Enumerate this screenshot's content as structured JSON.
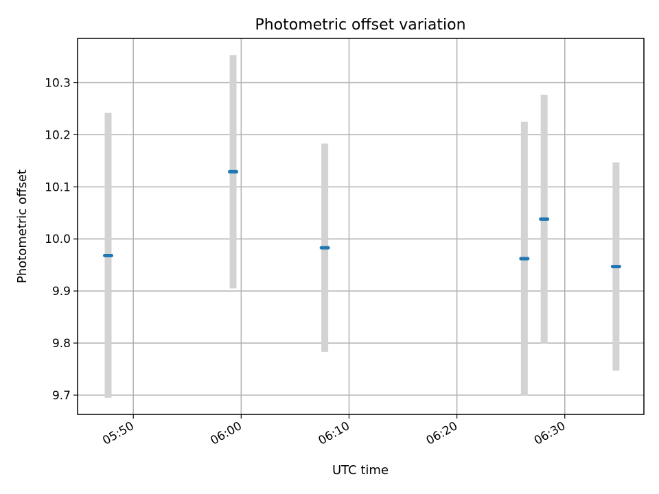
{
  "chart_data": {
    "type": "scatter",
    "title": "Photometric offset variation",
    "xlabel": "UTC time",
    "ylabel": "Photometric offset",
    "x_ticks": [
      "05:50",
      "06:00",
      "06:10",
      "06:20",
      "06:30"
    ],
    "y_ticks": [
      "9.7",
      "9.8",
      "9.9",
      "10.0",
      "10.1",
      "10.2",
      "10.3"
    ],
    "xlim": [
      "05:44:50",
      "06:37:20"
    ],
    "ylim": [
      9.663,
      10.385
    ],
    "grid": true,
    "colors": {
      "points": "#1f77b4",
      "error_bars": "#d3d3d3"
    },
    "series": [
      {
        "points": [
          {
            "x": "05:47:40",
            "y": 9.968,
            "ymin": 9.695,
            "ymax": 10.242
          },
          {
            "x": "05:59:15",
            "y": 10.129,
            "ymin": 9.905,
            "ymax": 10.353
          },
          {
            "x": "06:07:45",
            "y": 9.983,
            "ymin": 9.783,
            "ymax": 10.183
          },
          {
            "x": "06:26:15",
            "y": 9.962,
            "ymin": 9.699,
            "ymax": 10.225
          },
          {
            "x": "06:28:05",
            "y": 10.038,
            "ymin": 9.799,
            "ymax": 10.277
          },
          {
            "x": "06:34:45",
            "y": 9.947,
            "ymin": 9.747,
            "ymax": 10.147
          }
        ]
      }
    ]
  }
}
